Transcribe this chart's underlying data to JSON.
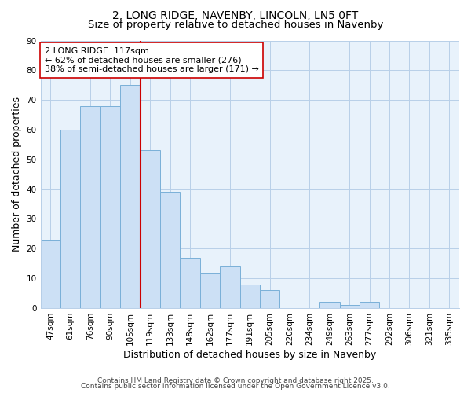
{
  "title_line1": "2, LONG RIDGE, NAVENBY, LINCOLN, LN5 0FT",
  "title_line2": "Size of property relative to detached houses in Navenby",
  "xlabel": "Distribution of detached houses by size in Navenby",
  "ylabel": "Number of detached properties",
  "categories": [
    "47sqm",
    "61sqm",
    "76sqm",
    "90sqm",
    "105sqm",
    "119sqm",
    "133sqm",
    "148sqm",
    "162sqm",
    "177sqm",
    "191sqm",
    "205sqm",
    "220sqm",
    "234sqm",
    "249sqm",
    "263sqm",
    "277sqm",
    "292sqm",
    "306sqm",
    "321sqm",
    "335sqm"
  ],
  "values": [
    23,
    60,
    68,
    68,
    75,
    53,
    39,
    17,
    12,
    14,
    8,
    6,
    0,
    0,
    2,
    1,
    2,
    0,
    0,
    0,
    0
  ],
  "bar_color_face": "#cce0f5",
  "bar_color_edge": "#7ab0d8",
  "vline_x": 5.0,
  "vline_color": "#cc0000",
  "annotation_text": "2 LONG RIDGE: 117sqm\n← 62% of detached houses are smaller (276)\n38% of semi-detached houses are larger (171) →",
  "annotation_box_color": "#ffffff",
  "annotation_box_edge": "#cc0000",
  "ylim": [
    0,
    90
  ],
  "yticks": [
    0,
    10,
    20,
    30,
    40,
    50,
    60,
    70,
    80,
    90
  ],
  "grid_color": "#b8cfe8",
  "bg_color": "#e8f2fb",
  "footnote_line1": "Contains HM Land Registry data © Crown copyright and database right 2025.",
  "footnote_line2": "Contains public sector information licensed under the Open Government Licence v3.0.",
  "title_fontsize": 10,
  "subtitle_fontsize": 9.5,
  "tick_fontsize": 7.5,
  "label_fontsize": 9,
  "annot_fontsize": 8,
  "footnote_fontsize": 6.5
}
